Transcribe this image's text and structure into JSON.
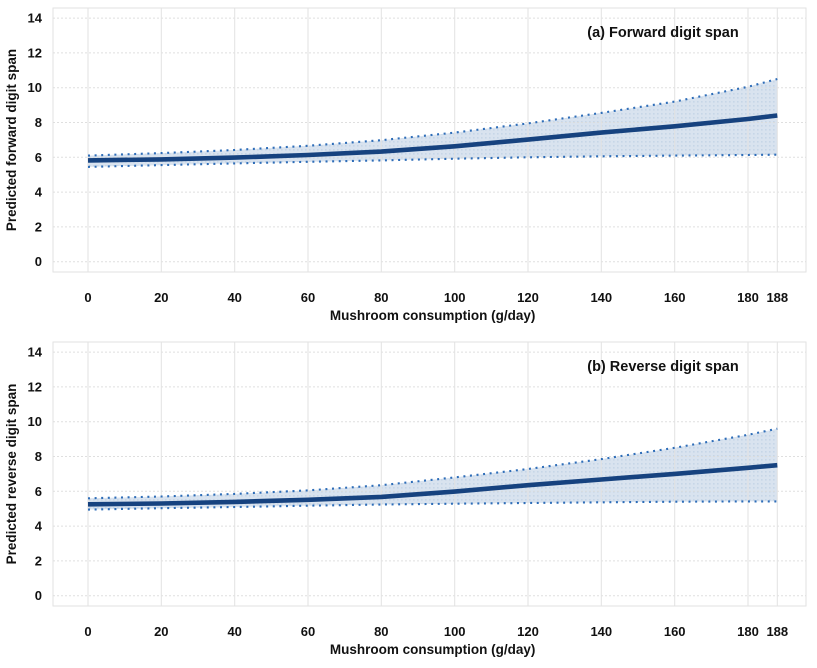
{
  "colors": {
    "background": "#ffffff",
    "fit_line": "#16427f",
    "ci_dotted": "#2e6db8",
    "band_fill": "#d9e3ef",
    "band_dot": "#c6d6e7",
    "grid_vertical": "#e2e2e2",
    "grid_horizontal": "#dcdcdc",
    "plot_border": "#e2e2e2",
    "text": "#111111"
  },
  "chart_data": [
    {
      "type": "line",
      "panel_label": "(a) Forward digit span",
      "x_axis_label": "Mushroom consumption (g/day)",
      "y_axis_label": "Predicted forward digit span",
      "x_ticks": [
        0,
        20,
        40,
        60,
        80,
        100,
        120,
        140,
        160,
        180,
        188
      ],
      "y_ticks": [
        0,
        2,
        4,
        6,
        8,
        10,
        12,
        14
      ],
      "x_range": [
        0,
        188
      ],
      "y_range": [
        0,
        14
      ],
      "grid": true,
      "legend": "none",
      "series": [
        {
          "name": "predicted-fit",
          "style": "thick-solid",
          "x": [
            0,
            20,
            40,
            60,
            80,
            100,
            120,
            140,
            160,
            180,
            188
          ],
          "y": [
            5.82,
            5.88,
            5.98,
            6.13,
            6.33,
            6.63,
            7.02,
            7.42,
            7.78,
            8.2,
            8.4
          ]
        },
        {
          "name": "upper-95ci",
          "style": "dotted",
          "x": [
            0,
            20,
            40,
            60,
            80,
            100,
            120,
            140,
            160,
            180,
            188
          ],
          "y": [
            6.1,
            6.24,
            6.42,
            6.66,
            6.98,
            7.42,
            7.95,
            8.55,
            9.2,
            10.05,
            10.5
          ]
        },
        {
          "name": "lower-95ci",
          "style": "dotted",
          "x": [
            0,
            20,
            40,
            60,
            80,
            100,
            120,
            140,
            160,
            180,
            188
          ],
          "y": [
            5.45,
            5.55,
            5.65,
            5.74,
            5.82,
            5.92,
            6.0,
            6.06,
            6.1,
            6.13,
            6.15
          ]
        }
      ]
    },
    {
      "type": "line",
      "panel_label": "(b) Reverse digit span",
      "x_axis_label": "Mushroom consumption (g/day)",
      "y_axis_label": "Predicted reverse digit span",
      "x_ticks": [
        0,
        20,
        40,
        60,
        80,
        100,
        120,
        140,
        160,
        180,
        188
      ],
      "y_ticks": [
        0,
        2,
        4,
        6,
        8,
        10,
        12,
        14
      ],
      "x_range": [
        0,
        188
      ],
      "y_range": [
        0,
        14
      ],
      "grid": true,
      "legend": "none",
      "series": [
        {
          "name": "predicted-fit",
          "style": "thick-solid",
          "x": [
            0,
            20,
            40,
            60,
            80,
            100,
            120,
            140,
            160,
            180,
            188
          ],
          "y": [
            5.25,
            5.3,
            5.39,
            5.51,
            5.68,
            5.98,
            6.35,
            6.68,
            7.0,
            7.35,
            7.5
          ]
        },
        {
          "name": "upper-95ci",
          "style": "dotted",
          "x": [
            0,
            20,
            40,
            60,
            80,
            100,
            120,
            140,
            160,
            180,
            188
          ],
          "y": [
            5.6,
            5.7,
            5.85,
            6.05,
            6.35,
            6.8,
            7.28,
            7.85,
            8.5,
            9.25,
            9.6
          ]
        },
        {
          "name": "lower-95ci",
          "style": "dotted",
          "x": [
            0,
            20,
            40,
            60,
            80,
            100,
            120,
            140,
            160,
            180,
            188
          ],
          "y": [
            4.95,
            5.03,
            5.1,
            5.17,
            5.24,
            5.29,
            5.33,
            5.37,
            5.4,
            5.42,
            5.42
          ]
        }
      ]
    }
  ]
}
